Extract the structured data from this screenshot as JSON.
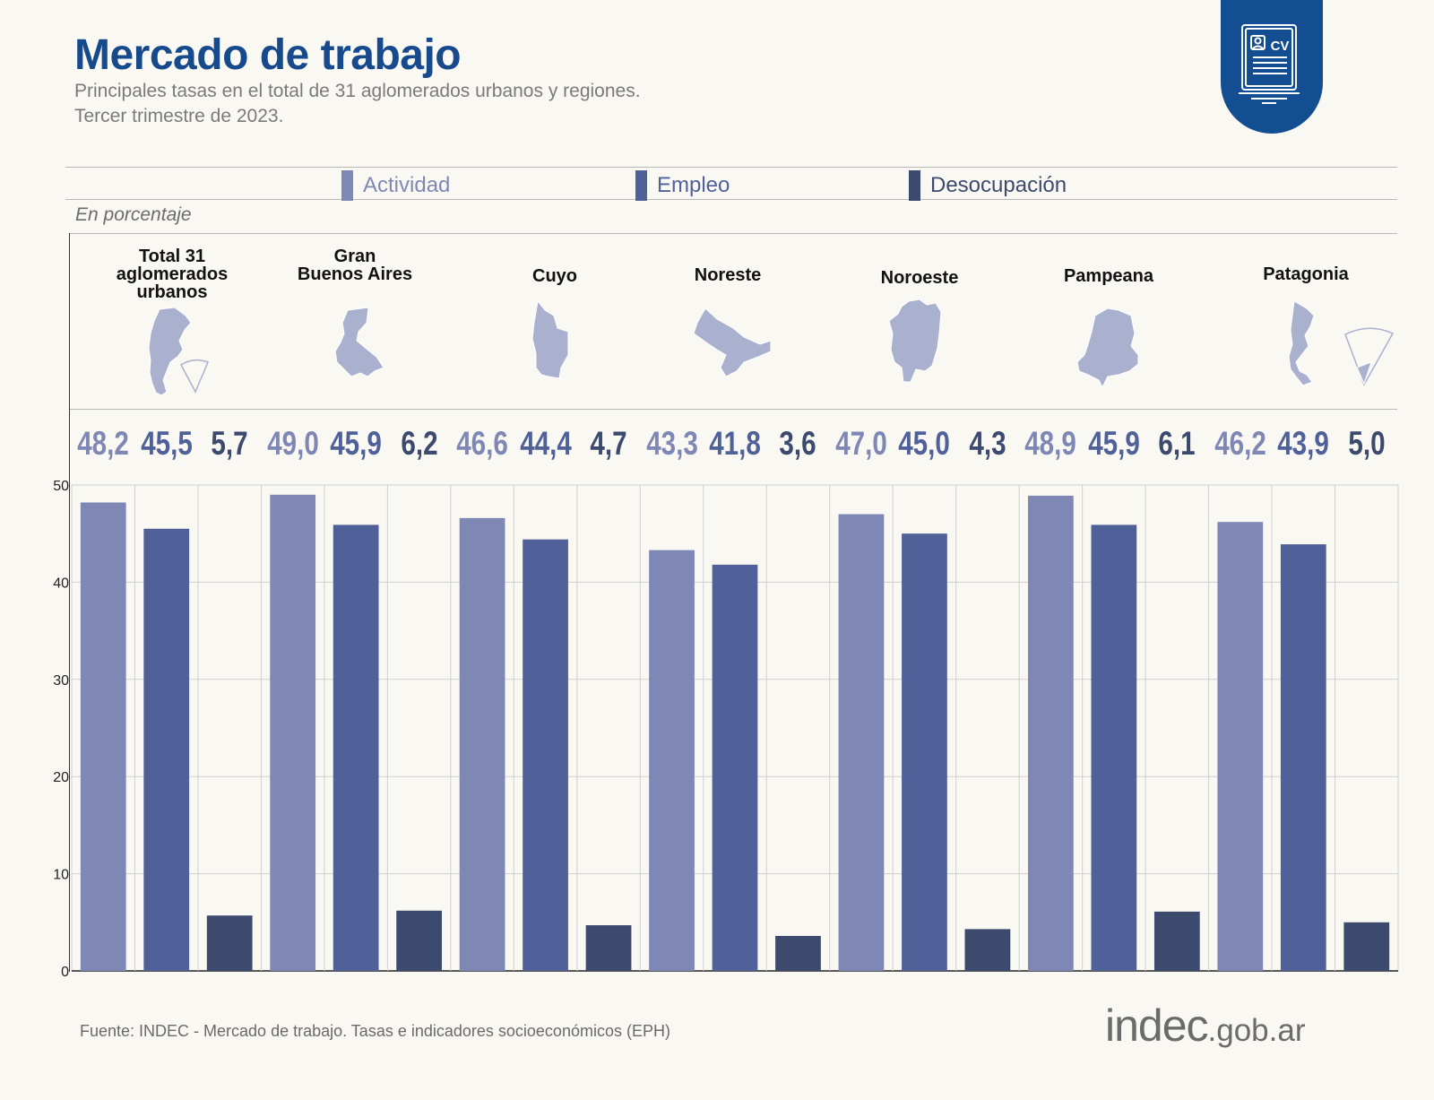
{
  "header": {
    "title": "Mercado de trabajo",
    "subtitle_line1": "Principales tasas en el total de 31 aglomerados urbanos y regiones.",
    "subtitle_line2": "Tercer trimestre de 2023.",
    "badge_icon": "cv-document-icon",
    "badge_text": "CV"
  },
  "legend": [
    {
      "label": "Actividad",
      "color": "#7f88b4"
    },
    {
      "label": "Empleo",
      "color": "#50619a"
    },
    {
      "label": "Desocupación",
      "color": "#3c4a6e"
    }
  ],
  "unit_label": "En porcentaje",
  "chart_data": {
    "type": "bar",
    "categories": [
      "Total 31 aglomerados urbanos",
      "Gran Buenos Aires",
      "Cuyo",
      "Noreste",
      "Noroeste",
      "Pampeana",
      "Patagonia"
    ],
    "series": [
      {
        "name": "Actividad",
        "values": [
          48.2,
          49.0,
          46.6,
          43.3,
          47.0,
          48.9,
          46.2
        ],
        "labels": [
          "48,2",
          "49,0",
          "46,6",
          "43,3",
          "47,0",
          "48,9",
          "46,2"
        ]
      },
      {
        "name": "Empleo",
        "values": [
          45.5,
          45.9,
          44.4,
          41.8,
          45.0,
          45.9,
          43.9
        ],
        "labels": [
          "45,5",
          "45,9",
          "44,4",
          "41,8",
          "45,0",
          "45,9",
          "43,9"
        ]
      },
      {
        "name": "Desocupación",
        "values": [
          5.7,
          6.2,
          4.7,
          3.6,
          4.3,
          6.1,
          5.0
        ],
        "labels": [
          "5,7",
          "6,2",
          "4,7",
          "3,6",
          "4,3",
          "6,1",
          "5,0"
        ]
      }
    ],
    "ylim": [
      0,
      50
    ],
    "yticks": [
      0,
      10,
      20,
      30,
      40,
      50
    ],
    "grid": true,
    "legend_position": "top"
  },
  "regions": [
    {
      "name_lines": [
        "Total 31",
        "aglomerados",
        "urbanos"
      ],
      "map_icon": "argentina-map-icon"
    },
    {
      "name_lines": [
        "Gran",
        "Buenos Aires"
      ],
      "map_icon": "gba-map-icon"
    },
    {
      "name_lines": [
        "Cuyo"
      ],
      "map_icon": "cuyo-map-icon"
    },
    {
      "name_lines": [
        "Noreste"
      ],
      "map_icon": "noreste-map-icon"
    },
    {
      "name_lines": [
        "Noroeste"
      ],
      "map_icon": "noroeste-map-icon"
    },
    {
      "name_lines": [
        "Pampeana"
      ],
      "map_icon": "pampeana-map-icon"
    },
    {
      "name_lines": [
        "Patagonia"
      ],
      "map_icon": "patagonia-map-icon"
    }
  ],
  "map_color": "#a9b1cf",
  "footer": {
    "source": "Fuente: INDEC - Mercado de trabajo. Tasas e indicadores socioeconómicos (EPH)",
    "logo_main": "indec",
    "logo_domain": ".gob.ar"
  }
}
